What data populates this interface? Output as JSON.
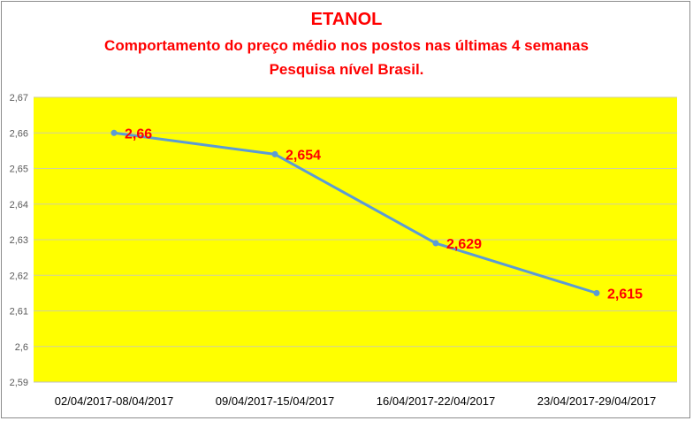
{
  "chart_data": {
    "type": "line",
    "title": "ETANOL",
    "subtitle_1": "Comportamento do preço médio nos postos nas últimas 4 semanas",
    "subtitle_2": "Pesquisa nível Brasil.",
    "categories": [
      "02/04/2017-08/04/2017",
      "09/04/2017-15/04/2017",
      "16/04/2017-22/04/2017",
      "23/04/2017-29/04/2017"
    ],
    "series": [
      {
        "values": [
          2.66,
          2.654,
          2.629,
          2.615
        ],
        "labels": [
          "2,66",
          "2,654",
          "2,629",
          "2,615"
        ],
        "color": "#5b9bd5"
      }
    ],
    "ylim": [
      2.59,
      2.67
    ],
    "yticks": [
      2.67,
      2.66,
      2.65,
      2.64,
      2.63,
      2.62,
      2.61,
      2.6,
      2.59
    ],
    "ytick_labels": [
      "2,67",
      "2,66",
      "2,65",
      "2,64",
      "2,63",
      "2,62",
      "2,61",
      "2,6",
      "2,59"
    ],
    "plot_background": "#ffff00",
    "gridlines": true,
    "label_color": "#ff0000"
  }
}
